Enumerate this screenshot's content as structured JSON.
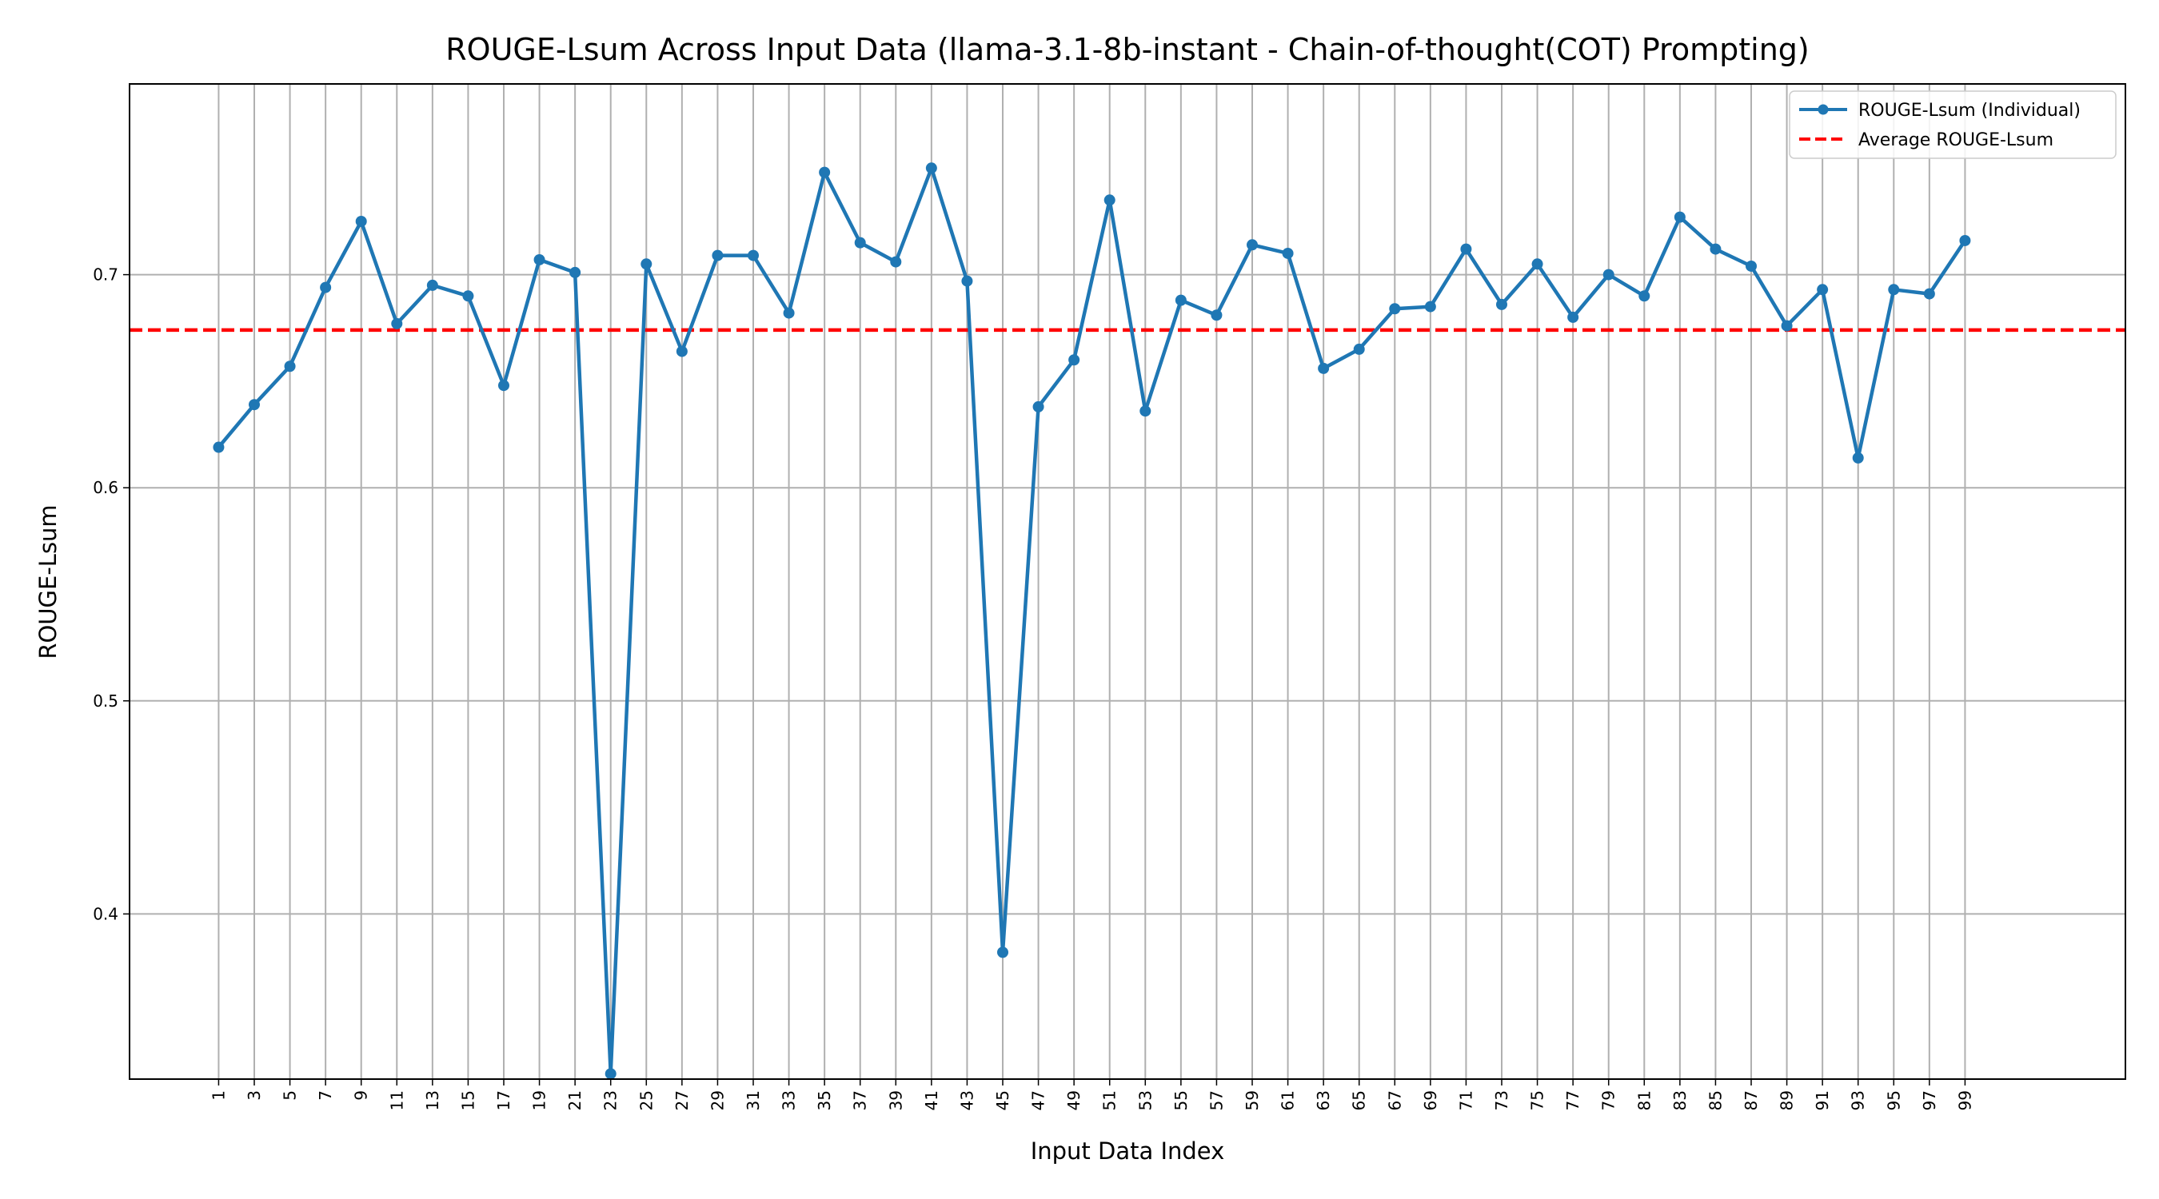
{
  "chart_data": {
    "type": "line",
    "title": "ROUGE-Lsum Across Input Data (llama-3.1-8b-instant - Chain-of-thought(COT) Prompting)",
    "xlabel": "Input Data Index",
    "ylabel": "ROUGE-Lsum",
    "x_ticks": [
      1,
      3,
      5,
      7,
      9,
      11,
      13,
      15,
      17,
      19,
      21,
      23,
      25,
      27,
      29,
      31,
      33,
      35,
      37,
      39,
      41,
      43,
      45,
      47,
      49,
      51,
      53,
      55,
      57,
      59,
      61,
      63,
      65,
      67,
      69,
      71,
      73,
      75,
      77,
      79,
      81,
      83,
      85,
      87,
      89,
      91,
      93,
      95,
      97,
      99
    ],
    "y_ticks": [
      0.4,
      0.5,
      0.6,
      0.7
    ],
    "y_tick_labels": [
      "0.4",
      "0.5",
      "0.6",
      "0.7"
    ],
    "xlim": [
      -4,
      108
    ],
    "ylim": [
      0.3225,
      0.7895
    ],
    "grid": true,
    "legend_position": "upper right",
    "series": [
      {
        "name": "ROUGE-Lsum (Individual)",
        "color": "#1f77b4",
        "style": "line-marker",
        "x": [
          1,
          3,
          5,
          7,
          9,
          11,
          13,
          15,
          17,
          19,
          21,
          23,
          25,
          27,
          29,
          31,
          33,
          35,
          37,
          39,
          41,
          43,
          45,
          47,
          49,
          51,
          53,
          55,
          57,
          59,
          61,
          63,
          65,
          67,
          69,
          71,
          73,
          75,
          77,
          79,
          81,
          83,
          85,
          87,
          89,
          91,
          93,
          95,
          97,
          99
        ],
        "y": [
          0.619,
          0.639,
          0.657,
          0.694,
          0.725,
          0.677,
          0.695,
          0.69,
          0.648,
          0.707,
          0.701,
          0.325,
          0.705,
          0.664,
          0.709,
          0.709,
          0.682,
          0.748,
          0.715,
          0.706,
          0.75,
          0.697,
          0.382,
          0.638,
          0.66,
          0.735,
          0.636,
          0.688,
          0.681,
          0.714,
          0.71,
          0.656,
          0.665,
          0.684,
          0.685,
          0.712,
          0.686,
          0.705,
          0.68,
          0.7,
          0.69,
          0.727,
          0.712,
          0.704,
          0.676,
          0.693,
          0.614,
          0.693,
          0.691,
          0.716
        ]
      },
      {
        "name": "Average ROUGE-Lsum",
        "color": "#ff0000",
        "style": "dashed-hline",
        "y": 0.674
      }
    ]
  }
}
